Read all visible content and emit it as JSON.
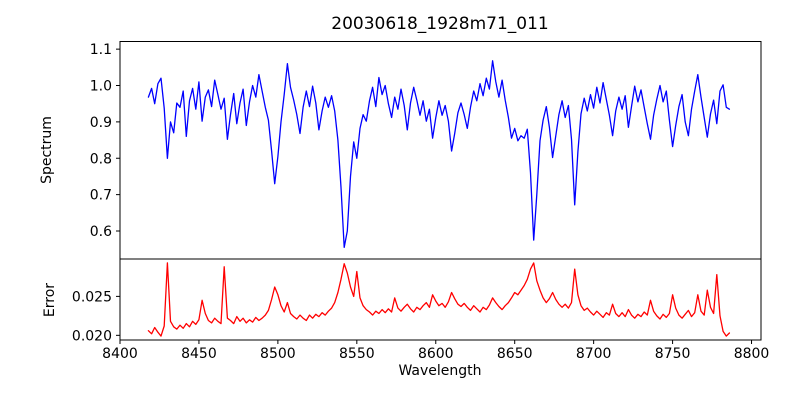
{
  "title": "20030618_1928m71_011",
  "colors": {
    "spectrum_line": "#0000ff",
    "error_line": "#ff0000",
    "axis": "#000000",
    "background": "#ffffff"
  },
  "chart_data": [
    {
      "type": "line",
      "title": "20030618_1928m71_011",
      "xlabel": "Wavelength",
      "ylabel": "Spectrum",
      "xlim": [
        8400,
        8806
      ],
      "ylim": [
        0.523,
        1.121
      ],
      "x_ticks": [
        8400,
        8450,
        8500,
        8550,
        8600,
        8650,
        8700,
        8750,
        8800
      ],
      "y_ticks": [
        1.1,
        1.0,
        0.9,
        0.8,
        0.7,
        0.6
      ],
      "y_tick_labels": [
        "1.1",
        "1.0",
        "0.9",
        "0.8",
        "0.7",
        "0.6"
      ],
      "grid": false,
      "legend": "none",
      "x_start": 8418,
      "x_step": 2,
      "series": [
        {
          "name": "spectrum",
          "color": "#0000ff",
          "values": [
            0.968,
            0.992,
            0.95,
            1.005,
            1.02,
            0.938,
            0.8,
            0.9,
            0.87,
            0.952,
            0.94,
            0.985,
            0.86,
            0.958,
            0.992,
            0.935,
            1.01,
            0.902,
            0.968,
            0.988,
            0.942,
            1.015,
            0.975,
            0.935,
            0.965,
            0.852,
            0.92,
            0.978,
            0.895,
            0.952,
            0.99,
            0.89,
            0.955,
            1.0,
            0.968,
            1.03,
            0.985,
            0.94,
            0.905,
            0.82,
            0.73,
            0.805,
            0.9,
            0.975,
            1.06,
            0.995,
            0.96,
            0.92,
            0.868,
            0.94,
            0.985,
            0.942,
            0.998,
            0.952,
            0.878,
            0.93,
            0.968,
            0.94,
            0.972,
            0.93,
            0.85,
            0.72,
            0.555,
            0.6,
            0.75,
            0.845,
            0.8,
            0.882,
            0.92,
            0.902,
            0.958,
            0.995,
            0.942,
            1.022,
            0.975,
            1.0,
            0.95,
            0.912,
            0.968,
            0.935,
            0.99,
            0.945,
            0.878,
            0.952,
            0.995,
            0.96,
            0.918,
            0.958,
            0.902,
            0.935,
            0.855,
            0.912,
            0.958,
            0.918,
            0.945,
            0.902,
            0.82,
            0.868,
            0.925,
            0.952,
            0.92,
            0.882,
            0.94,
            0.985,
            0.958,
            1.005,
            0.972,
            1.02,
            0.99,
            1.068,
            1.01,
            0.968,
            1.015,
            0.96,
            0.912,
            0.855,
            0.882,
            0.848,
            0.862,
            0.855,
            0.88,
            0.76,
            0.575,
            0.7,
            0.848,
            0.905,
            0.942,
            0.885,
            0.802,
            0.862,
            0.92,
            0.958,
            0.912,
            0.945,
            0.852,
            0.672,
            0.818,
            0.922,
            0.965,
            0.93,
            0.975,
            0.938,
            0.995,
            0.952,
            1.008,
            0.962,
            0.918,
            0.862,
            0.93,
            0.968,
            0.935,
            0.972,
            0.885,
            0.942,
            0.998,
            0.955,
            0.988,
            0.94,
            0.895,
            0.852,
            0.918,
            0.962,
            1.0,
            0.955,
            0.985,
            0.905,
            0.832,
            0.89,
            0.942,
            0.975,
            0.9,
            0.862,
            0.935,
            0.985,
            1.03,
            0.968,
            0.912,
            0.858,
            0.922,
            0.96,
            0.895,
            0.985,
            1.002,
            0.94,
            0.935
          ]
        }
      ]
    },
    {
      "type": "line",
      "title": "",
      "xlabel": "Wavelength",
      "ylabel": "Error",
      "xlim": [
        8400,
        8806
      ],
      "ylim": [
        0.0194,
        0.0298
      ],
      "x_ticks": [
        8400,
        8450,
        8500,
        8550,
        8600,
        8650,
        8700,
        8750,
        8800
      ],
      "y_ticks": [
        0.025,
        0.02
      ],
      "y_tick_labels": [
        "0.025",
        "0.020"
      ],
      "grid": false,
      "legend": "none",
      "x_start": 8418,
      "x_step": 2,
      "series": [
        {
          "name": "error",
          "color": "#ff0000",
          "values": [
            0.0206,
            0.0202,
            0.021,
            0.0204,
            0.0199,
            0.0212,
            0.0293,
            0.0218,
            0.0211,
            0.0208,
            0.0213,
            0.0209,
            0.0215,
            0.0211,
            0.0218,
            0.0214,
            0.022,
            0.0245,
            0.0228,
            0.0219,
            0.0216,
            0.0222,
            0.0218,
            0.0215,
            0.0288,
            0.0222,
            0.0219,
            0.0215,
            0.0224,
            0.0218,
            0.0222,
            0.0216,
            0.022,
            0.0217,
            0.0223,
            0.0219,
            0.0222,
            0.0226,
            0.0232,
            0.0246,
            0.0262,
            0.0252,
            0.0238,
            0.023,
            0.0242,
            0.0228,
            0.0224,
            0.0221,
            0.0226,
            0.0222,
            0.0219,
            0.0226,
            0.0222,
            0.0227,
            0.0224,
            0.0229,
            0.0226,
            0.0231,
            0.0235,
            0.0242,
            0.0255,
            0.0272,
            0.0292,
            0.028,
            0.0262,
            0.025,
            0.0282,
            0.0248,
            0.0238,
            0.0233,
            0.023,
            0.0226,
            0.0231,
            0.0228,
            0.0233,
            0.0229,
            0.0234,
            0.023,
            0.0248,
            0.0235,
            0.0231,
            0.0236,
            0.024,
            0.0234,
            0.023,
            0.0236,
            0.0233,
            0.0238,
            0.0242,
            0.0236,
            0.0252,
            0.0244,
            0.0238,
            0.0241,
            0.0236,
            0.0243,
            0.0255,
            0.0247,
            0.024,
            0.0237,
            0.0241,
            0.0236,
            0.0232,
            0.0238,
            0.0234,
            0.023,
            0.0236,
            0.0233,
            0.0239,
            0.0248,
            0.0242,
            0.0237,
            0.0233,
            0.0238,
            0.0242,
            0.0248,
            0.0255,
            0.0252,
            0.0258,
            0.0264,
            0.0272,
            0.0285,
            0.0293,
            0.027,
            0.0258,
            0.0248,
            0.0242,
            0.0247,
            0.0255,
            0.0246,
            0.024,
            0.0236,
            0.024,
            0.0235,
            0.0242,
            0.0285,
            0.0252,
            0.0238,
            0.0232,
            0.0235,
            0.023,
            0.0226,
            0.0231,
            0.0227,
            0.0223,
            0.0229,
            0.0226,
            0.024,
            0.0228,
            0.0224,
            0.0229,
            0.0224,
            0.0233,
            0.0226,
            0.0222,
            0.0227,
            0.0224,
            0.023,
            0.0226,
            0.0245,
            0.0231,
            0.0225,
            0.0221,
            0.0227,
            0.0223,
            0.0228,
            0.0252,
            0.0235,
            0.0226,
            0.0222,
            0.0227,
            0.0232,
            0.0224,
            0.0229,
            0.0252,
            0.0231,
            0.0226,
            0.0258,
            0.0236,
            0.0228,
            0.0278,
            0.0225,
            0.0205,
            0.0199,
            0.0203
          ]
        }
      ]
    }
  ]
}
